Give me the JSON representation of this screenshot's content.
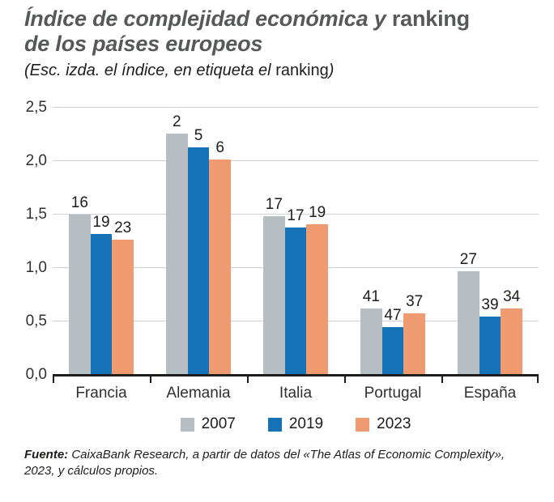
{
  "header": {
    "title_italic_1": "Índice de complejidad económica y ",
    "title_roman_1": "ranking",
    "title_line2": "de los países europeos",
    "subtitle_italic": "(Esc. izda. el índice, en etiqueta el ",
    "subtitle_roman": "ranking",
    "subtitle_end": ")"
  },
  "chart_data": {
    "type": "bar",
    "title": "Índice de complejidad económica y ranking de los países europeos",
    "subtitle": "(Esc. izda. el índice, en etiqueta el ranking)",
    "categories": [
      "Francia",
      "Alemania",
      "Italia",
      "Portugal",
      "España"
    ],
    "series": [
      {
        "name": "2007",
        "color": "#b6bdc3",
        "values": [
          1.49,
          2.25,
          1.48,
          0.61,
          0.96
        ],
        "rank_labels": [
          "16",
          "2",
          "17",
          "41",
          "27"
        ]
      },
      {
        "name": "2019",
        "color": "#1672b6",
        "values": [
          1.31,
          2.12,
          1.37,
          0.44,
          0.54
        ],
        "rank_labels": [
          "19",
          "5",
          "17",
          "47",
          "39"
        ]
      },
      {
        "name": "2023",
        "color": "#f09a71",
        "values": [
          1.26,
          2.01,
          1.4,
          0.57,
          0.61
        ],
        "rank_labels": [
          "23",
          "6",
          "19",
          "37",
          "34"
        ]
      }
    ],
    "ylim": [
      0,
      2.5
    ],
    "yticks": [
      "0,0",
      "0,5",
      "1,0",
      "1,5",
      "2,0",
      "2,5"
    ],
    "ytick_values": [
      0,
      0.5,
      1,
      1.5,
      2,
      2.5
    ],
    "grid": true,
    "legend_position": "bottom",
    "colors": {
      "axis": "#1d1d1b",
      "gridline": "#cfd2d4",
      "title_text": "#57585a",
      "body_text": "#1d1d1b"
    }
  },
  "footer": {
    "source_label": "Fuente:",
    "line1": " CaixaBank Research, a partir de datos del «The Atlas of Economic Complexity»,",
    "line2": "2023, y cálculos propios."
  }
}
